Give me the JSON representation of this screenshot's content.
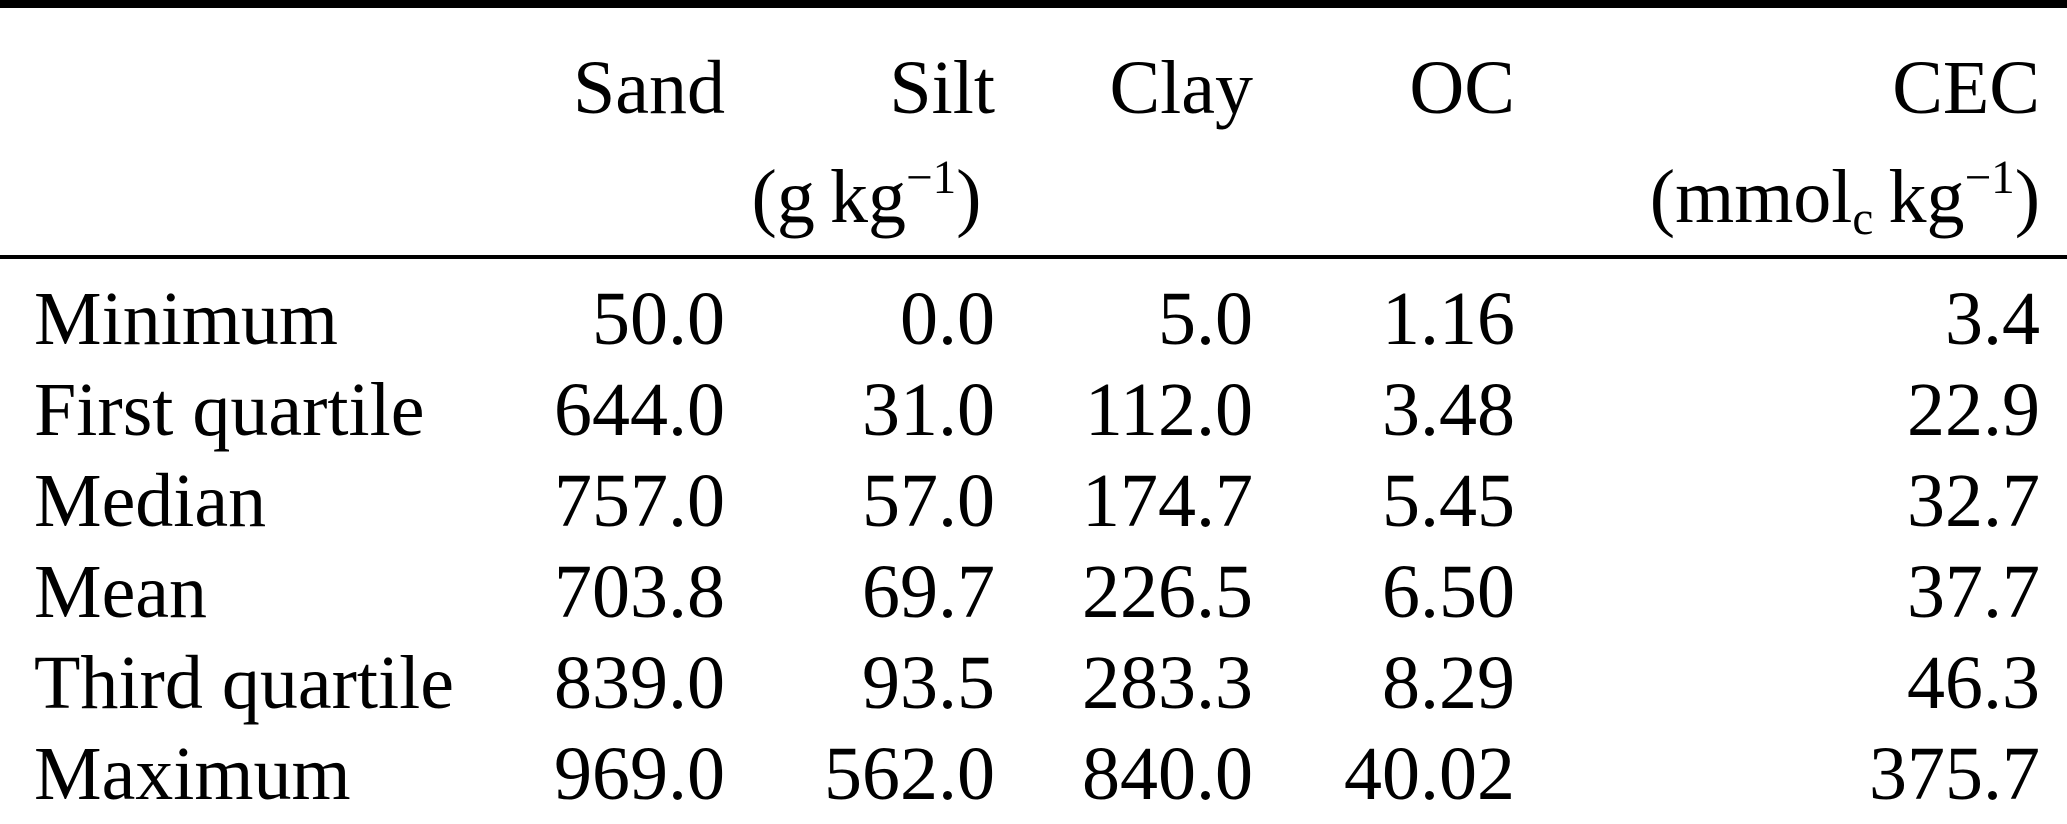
{
  "table": {
    "header": {
      "columns": [
        "Sand",
        "Silt",
        "Clay",
        "OC",
        "CEC"
      ],
      "unit_gkg": {
        "pre": "(g kg",
        "sup": "−1",
        "post": ")"
      },
      "unit_cec": {
        "pre": "(mmol",
        "sub": "c",
        "mid": " kg",
        "sup": "−1",
        "post": ")"
      }
    },
    "rows": [
      {
        "label": "Minimum",
        "values": [
          "50.0",
          "0.0",
          "5.0",
          "1.16",
          "3.4"
        ]
      },
      {
        "label": "First quartile",
        "values": [
          "644.0",
          "31.0",
          "112.0",
          "3.48",
          "22.9"
        ]
      },
      {
        "label": "Median",
        "values": [
          "757.0",
          "57.0",
          "174.7",
          "5.45",
          "32.7"
        ]
      },
      {
        "label": "Mean",
        "values": [
          "703.8",
          "69.7",
          "226.5",
          "6.50",
          "37.7"
        ]
      },
      {
        "label": "Third quartile",
        "values": [
          "839.0",
          "93.5",
          "283.3",
          "8.29",
          "46.3"
        ]
      },
      {
        "label": "Maximum",
        "values": [
          "969.0",
          "562.0",
          "840.0",
          "40.02",
          "375.7"
        ]
      }
    ]
  },
  "colors": {
    "text": "#000000",
    "background": "#ffffff",
    "rule": "#000000"
  }
}
